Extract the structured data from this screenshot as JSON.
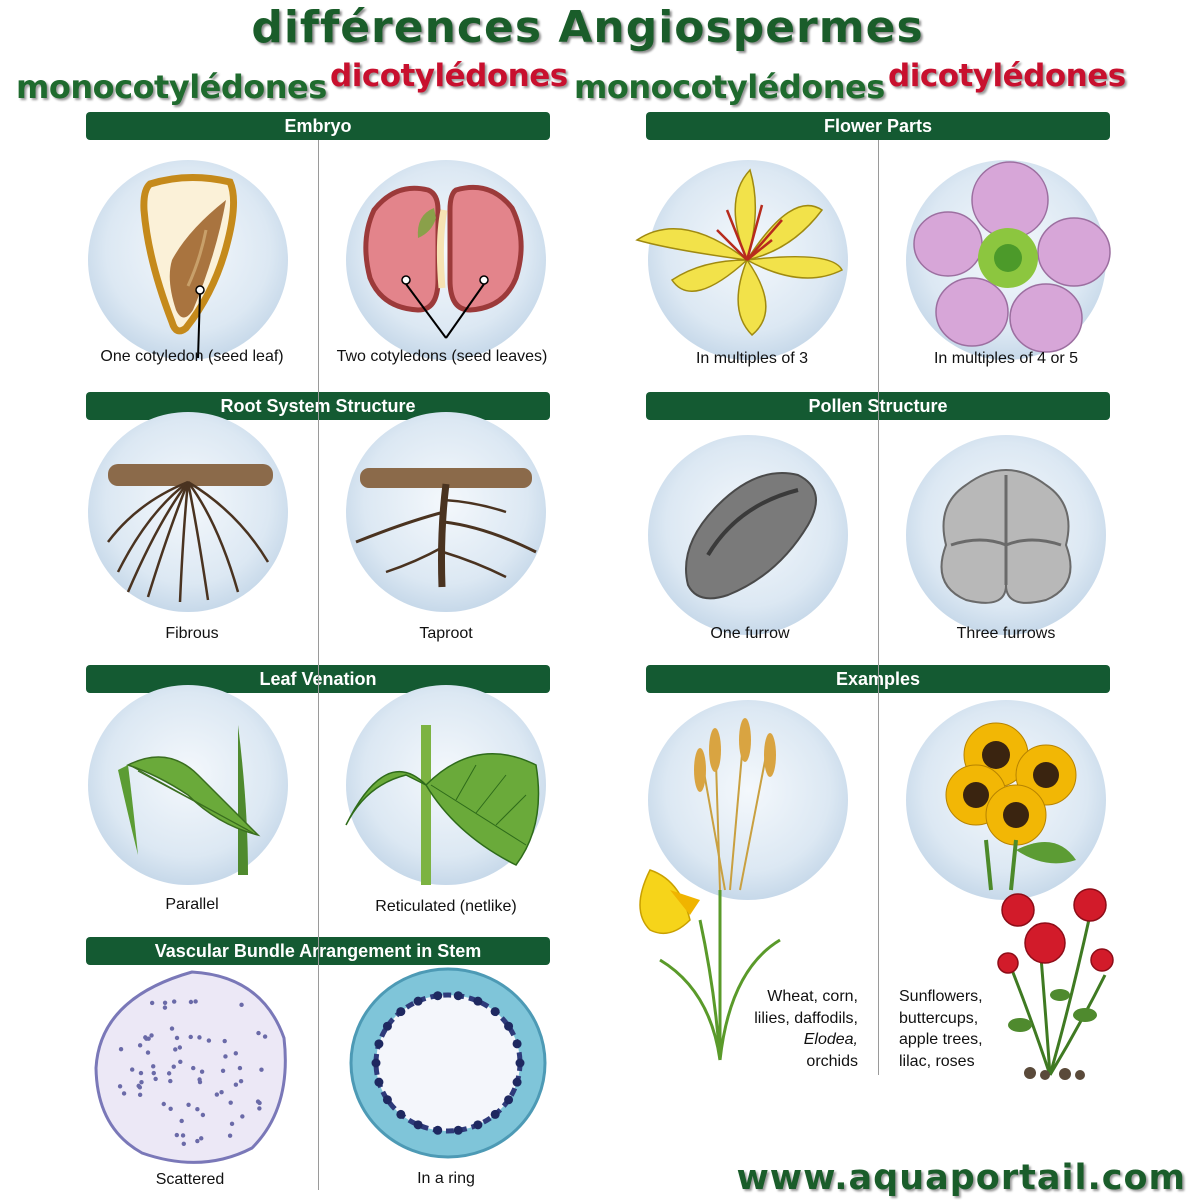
{
  "title": "différences Angiospermes",
  "subtitles": {
    "left_mono": "monocotylédones",
    "left_di": "dicotylédones",
    "right_mono": "monocotylédones",
    "right_di": "dicotylédones"
  },
  "sections": {
    "embryo": {
      "title": "Embryo",
      "mono": "One cotyledon (seed leaf)",
      "di": "Two cotyledons (seed leaves)"
    },
    "flower": {
      "title": "Flower Parts",
      "mono": "In multiples of 3",
      "di": "In multiples of 4 or 5"
    },
    "root": {
      "title": "Root System  Structure",
      "mono": "Fibrous",
      "di": "Taproot"
    },
    "pollen": {
      "title": "Pollen Structure",
      "mono": "One furrow",
      "di": "Three furrows"
    },
    "leaf": {
      "title": "Leaf Venation",
      "mono": "Parallel",
      "di": "Reticulated (netlike)"
    },
    "examples": {
      "title": "Examples",
      "mono": [
        "Wheat, corn,",
        "lilies, daffodils,",
        "Elodea,",
        "orchids"
      ],
      "di": [
        "Sunflowers,",
        "buttercups,",
        "apple trees,",
        "lilac, roses"
      ]
    },
    "vascular": {
      "title": "Vascular Bundle Arrangement in Stem",
      "mono": "Scattered",
      "di": "In a ring"
    }
  },
  "footer_url": "www.aquaportail.com",
  "colors": {
    "header_bar": "#145a32",
    "mono_text": "#1f6b2e",
    "di_text": "#c8102e",
    "circle": "#c9dbeb"
  }
}
